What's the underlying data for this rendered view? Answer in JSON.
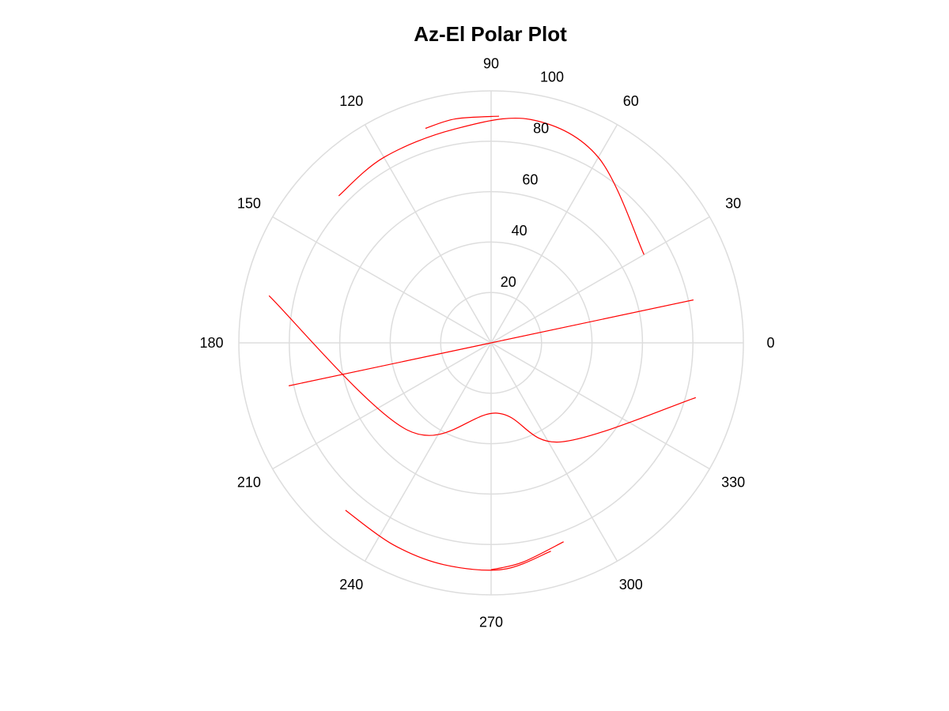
{
  "chart_data": {
    "type": "polar-line",
    "title": "Az-El Polar Plot",
    "angular_unit": "degrees",
    "angle_ticks": [
      "0",
      "30",
      "60",
      "90",
      "120",
      "150",
      "180",
      "210",
      "240",
      "270",
      "300",
      "330"
    ],
    "radial_ticks": [
      "20",
      "40",
      "60",
      "80",
      "100"
    ],
    "rlim": [
      0,
      100
    ],
    "grid": true,
    "grid_color": "#dddddd",
    "series_color": "#ff0000",
    "series": [
      {
        "points": [
          [
            12,
            82
          ],
          [
            2,
            0
          ],
          [
            192,
            82
          ]
        ]
      },
      {
        "points": [
          [
            345,
            84
          ],
          [
            305,
            48
          ],
          [
            275,
            28
          ],
          [
            226,
            48
          ],
          [
            168,
            90
          ]
        ]
      },
      {
        "points": [
          [
            30,
            70
          ],
          [
            60,
            85
          ],
          [
            80,
            90
          ],
          [
            100,
            86
          ],
          [
            120,
            85
          ],
          [
            136,
            84
          ]
        ]
      },
      {
        "points": [
          [
            88,
            90
          ],
          [
            99,
            90
          ],
          [
            107,
            89
          ]
        ]
      },
      {
        "points": [
          [
            286,
            86
          ],
          [
            273,
            90
          ],
          [
            258,
            90
          ],
          [
            244,
            89
          ],
          [
            229,
            88
          ]
        ]
      },
      {
        "points": [
          [
            290,
            84
          ],
          [
            278,
            88
          ],
          [
            270,
            90
          ]
        ]
      }
    ]
  }
}
